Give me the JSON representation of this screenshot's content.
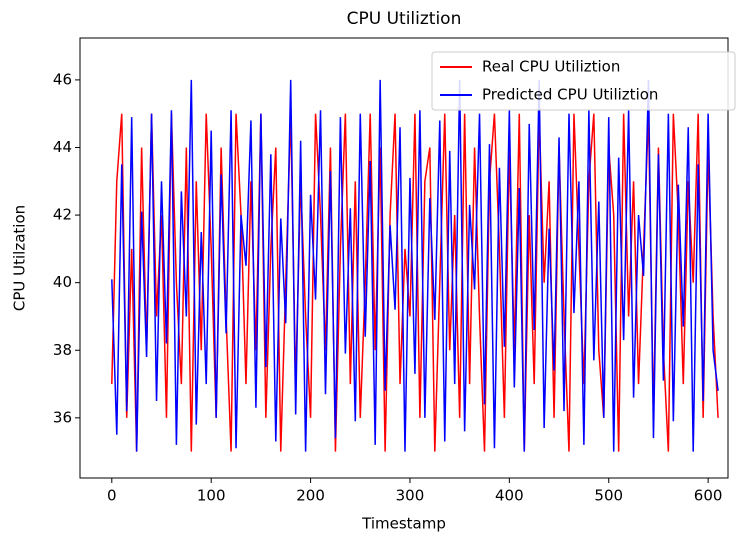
{
  "chart_data": {
    "type": "line",
    "title": "CPU Utiliztion",
    "xlabel": "Timestamp",
    "ylabel": "CPU Utilzation",
    "x": [
      0,
      5,
      10,
      15,
      20,
      25,
      30,
      35,
      40,
      45,
      50,
      55,
      60,
      65,
      70,
      75,
      80,
      85,
      90,
      95,
      100,
      105,
      110,
      115,
      120,
      125,
      130,
      135,
      140,
      145,
      150,
      155,
      160,
      165,
      170,
      175,
      180,
      185,
      190,
      195,
      200,
      205,
      210,
      215,
      220,
      225,
      230,
      235,
      240,
      245,
      250,
      255,
      260,
      265,
      270,
      275,
      280,
      285,
      290,
      295,
      300,
      305,
      310,
      315,
      320,
      325,
      330,
      335,
      340,
      345,
      350,
      355,
      360,
      365,
      370,
      375,
      380,
      385,
      390,
      395,
      400,
      405,
      410,
      415,
      420,
      425,
      430,
      435,
      440,
      445,
      450,
      455,
      460,
      465,
      470,
      475,
      480,
      485,
      490,
      495,
      500,
      505,
      510,
      515,
      520,
      525,
      530,
      535,
      540,
      545,
      550,
      555,
      560,
      565,
      570,
      575,
      580,
      585,
      590,
      595,
      600,
      605,
      610
    ],
    "series": [
      {
        "name": "Real CPU Utiliztion",
        "color": "#ff0000",
        "values": [
          37,
          43,
          45,
          36,
          41,
          35,
          44,
          38,
          45,
          39,
          42,
          36,
          45,
          40,
          37,
          44,
          35,
          43,
          38,
          45,
          41,
          36,
          44,
          39,
          35,
          45,
          42,
          37,
          43,
          38,
          45,
          36,
          41,
          44,
          35,
          40,
          45,
          37,
          43,
          39,
          36,
          45,
          42,
          38,
          44,
          35,
          41,
          45,
          37,
          43,
          36,
          40,
          45,
          38,
          44,
          35,
          42,
          45,
          37,
          41,
          39,
          45,
          36,
          43,
          44,
          35,
          40,
          45,
          38,
          42,
          36,
          45,
          37,
          44,
          39,
          35,
          43,
          45,
          41,
          36,
          44,
          38,
          45,
          35,
          42,
          37,
          45,
          40,
          43,
          36,
          44,
          39,
          35,
          45,
          41,
          37,
          43,
          45,
          38,
          36,
          44,
          42,
          35,
          45,
          39,
          43,
          37,
          41,
          45,
          36,
          44,
          38,
          35,
          45,
          42,
          37,
          43,
          40,
          45,
          36,
          44,
          39,
          36
        ]
      },
      {
        "name": "Predicted CPU Utiliztion",
        "color": "#0000ff",
        "values": [
          40.1,
          35.5,
          43.5,
          36.2,
          44.9,
          35,
          42.1,
          37.8,
          45,
          36.5,
          43,
          38.2,
          45.1,
          35.2,
          42.7,
          39,
          46,
          35.8,
          41.5,
          37,
          44.5,
          36,
          43.2,
          38.5,
          45.1,
          35.1,
          42,
          40.5,
          44.8,
          36.3,
          45,
          37.5,
          43.8,
          35.3,
          41.9,
          38.8,
          46,
          36.1,
          44.2,
          35,
          42.6,
          39.5,
          45.1,
          36.7,
          43.3,
          35.4,
          44.9,
          37.9,
          42.2,
          35.9,
          45,
          38.4,
          43.6,
          35.2,
          46,
          36.8,
          41.7,
          39.2,
          44.6,
          35,
          43.1,
          37.3,
          45.1,
          36,
          42.5,
          38.9,
          44.8,
          35.3,
          43.9,
          37,
          46,
          35.6,
          42.3,
          39.8,
          45,
          36.4,
          44.1,
          35.1,
          43.4,
          38.1,
          45.1,
          36.9,
          42.8,
          35,
          44.7,
          38.6,
          46,
          35.7,
          41.6,
          37.4,
          44.3,
          36.2,
          45,
          39.1,
          43,
          35.2,
          45.1,
          37.7,
          42.4,
          36,
          44.9,
          35,
          43.7,
          38.3,
          45.1,
          36.6,
          42,
          40.2,
          46,
          35.4,
          43.8,
          37.1,
          45,
          35.9,
          42.9,
          38.7,
          44.6,
          35,
          43.5,
          36.5,
          45,
          38,
          36.8
        ]
      }
    ],
    "xlim": [
      -32,
      620
    ],
    "ylim": [
      34.22,
      47.24
    ],
    "xticks": [
      0,
      100,
      200,
      300,
      400,
      500,
      600
    ],
    "yticks": [
      36,
      38,
      40,
      42,
      44,
      46
    ],
    "legend": "upper right"
  }
}
